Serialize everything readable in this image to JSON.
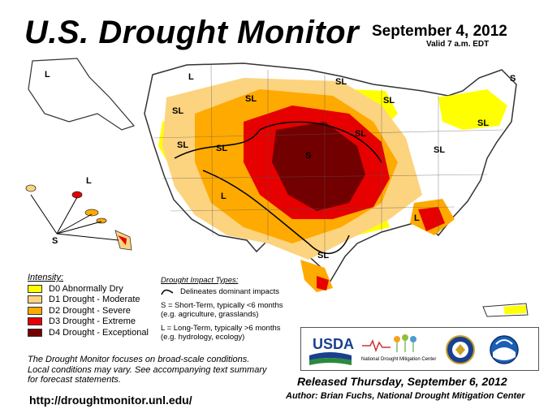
{
  "title": "U.S. Drought Monitor",
  "date": "September 4, 2012",
  "valid": "Valid 7 a.m. EDT",
  "legend": {
    "heading": "Intensity:",
    "items": [
      {
        "label": "D0 Abnormally Dry",
        "color": "#ffff00"
      },
      {
        "label": "D1 Drought - Moderate",
        "color": "#fcd37f"
      },
      {
        "label": "D2 Drought - Severe",
        "color": "#ffaa00"
      },
      {
        "label": "D3 Drought - Extreme",
        "color": "#e60000"
      },
      {
        "label": "D4 Drought - Exceptional",
        "color": "#730000"
      }
    ]
  },
  "impact": {
    "heading": "Drought Impact Types:",
    "line_label": "Delineates dominant impacts",
    "s_line1": "S = Short-Term, typically <6 months",
    "s_line2": "(e.g. agriculture, grasslands)",
    "l_line1": "L = Long-Term, typically >6 months",
    "l_line2": "(e.g. hydrology, ecology)"
  },
  "note": [
    "The Drought Monitor focuses on broad-scale conditions.",
    "Local conditions may vary. See accompanying text summary",
    "for forecast statements."
  ],
  "map_labels": {
    "L": "L",
    "S": "S",
    "SL": "SL"
  },
  "logos": {
    "usda": "USDA",
    "ndmc_line1": "National",
    "ndmc_line2": "Drought Mitigation Center"
  },
  "released": "Released Thursday, September 6, 2012",
  "author": "Author: Brian Fuchs, National Drought Mitigation Center",
  "url": "http://droughtmonitor.unl.edu/"
}
